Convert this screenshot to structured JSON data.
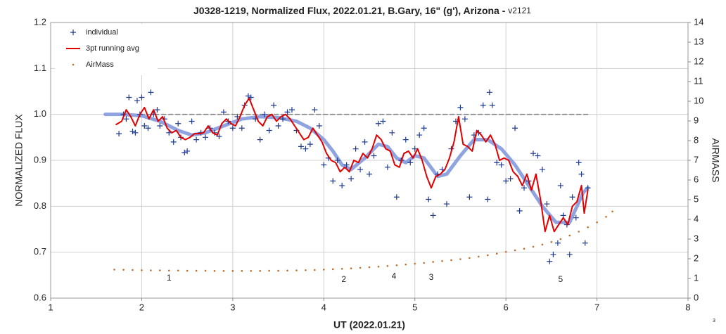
{
  "chart_data": {
    "type": "scatter",
    "title": "J0328-1219, Normalized Flux, 2022.01.21, B.Gary, 16\" (g'), Arizona - ",
    "title_version": "v2121",
    "corner_note": "3",
    "xlabel": "UT (2022.01.21)",
    "ylabel": "NORMALIZED FLUX",
    "y2label": "AIRMASS",
    "xlim": [
      1,
      8
    ],
    "xticks": [
      1,
      2,
      3,
      4,
      5,
      6,
      7,
      8
    ],
    "ylim": [
      0.6,
      1.2
    ],
    "yticks": [
      0.6,
      0.7,
      0.8,
      0.9,
      {
        "value": 1.0,
        "label": "1.0"
      },
      1.1,
      1.2
    ],
    "y2lim": [
      0,
      14
    ],
    "y2ticks": [
      0,
      1,
      2,
      3,
      4,
      5,
      6,
      7,
      8,
      9,
      10,
      11,
      12,
      13,
      14
    ],
    "grid": true,
    "legend": "upper left",
    "series": [
      {
        "type": "line",
        "color": "#808080",
        "dashed": true,
        "line_width": 1.5,
        "x": [
          1.6,
          6.9
        ],
        "values": [
          1.0,
          1.0
        ]
      },
      {
        "type": "line",
        "color": "#8fa3e0",
        "line_width": 5,
        "x": [
          1.6,
          1.8,
          2.0,
          2.2,
          2.4,
          2.55,
          2.7,
          2.9,
          3.1,
          3.3,
          3.5,
          3.7,
          3.85,
          4.0,
          4.1,
          4.2,
          4.3,
          4.45,
          4.6,
          4.7,
          4.8,
          4.9,
          5.0,
          5.1,
          5.25,
          5.35,
          5.5,
          5.65,
          5.8,
          5.95,
          6.1,
          6.25,
          6.4,
          6.55,
          6.7,
          6.85,
          6.9
        ],
        "values": [
          1.0,
          1.0,
          0.997,
          0.985,
          0.965,
          0.955,
          0.96,
          0.975,
          0.99,
          0.995,
          0.993,
          0.985,
          0.97,
          0.945,
          0.92,
          0.89,
          0.88,
          0.905,
          0.935,
          0.93,
          0.905,
          0.895,
          0.91,
          0.905,
          0.865,
          0.87,
          0.91,
          0.945,
          0.945,
          0.925,
          0.89,
          0.845,
          0.8,
          0.765,
          0.765,
          0.83,
          0.84
        ]
      },
      {
        "name": "individual",
        "type": "scatter",
        "marker": "plus",
        "color": "#1f3a8f",
        "x": [
          1.75,
          1.8,
          1.83,
          1.86,
          1.9,
          1.93,
          1.95,
          1.98,
          2.0,
          2.03,
          2.07,
          2.1,
          2.13,
          2.17,
          2.2,
          2.25,
          2.3,
          2.35,
          2.4,
          2.43,
          2.47,
          2.5,
          2.55,
          2.6,
          2.65,
          2.7,
          2.75,
          2.8,
          2.85,
          2.9,
          2.95,
          3.0,
          3.05,
          3.1,
          3.13,
          3.17,
          3.2,
          3.25,
          3.3,
          3.35,
          3.4,
          3.45,
          3.5,
          3.55,
          3.6,
          3.65,
          3.7,
          3.75,
          3.8,
          3.85,
          3.9,
          3.95,
          4.0,
          4.05,
          4.1,
          4.15,
          4.2,
          4.25,
          4.3,
          4.35,
          4.4,
          4.45,
          4.5,
          4.55,
          4.6,
          4.65,
          4.7,
          4.75,
          4.8,
          4.85,
          4.9,
          4.95,
          5.0,
          5.05,
          5.1,
          5.15,
          5.2,
          5.25,
          5.3,
          5.35,
          5.4,
          5.45,
          5.5,
          5.55,
          5.6,
          5.65,
          5.7,
          5.75,
          5.8,
          5.82,
          5.85,
          5.9,
          5.95,
          6.0,
          6.05,
          6.1,
          6.15,
          6.2,
          6.25,
          6.3,
          6.35,
          6.4,
          6.45,
          6.48,
          6.52,
          6.57,
          6.6,
          6.63,
          6.67,
          6.7,
          6.73,
          6.77,
          6.8,
          6.83,
          6.87,
          6.9
        ],
        "values": [
          0.958,
          1.0,
          0.99,
          1.037,
          0.963,
          0.96,
          1.03,
          1.0,
          1.037,
          0.975,
          0.97,
          1.048,
          1.0,
          1.01,
          0.975,
          0.99,
          0.96,
          0.94,
          0.98,
          0.95,
          0.917,
          0.92,
          0.985,
          0.945,
          0.96,
          0.95,
          0.97,
          0.96,
          0.952,
          1.005,
          0.985,
          0.97,
          0.995,
          0.97,
          1.02,
          1.04,
          1.037,
          0.99,
          0.945,
          1.0,
          0.965,
          1.02,
          0.975,
          0.99,
          1.005,
          1.01,
          0.965,
          0.93,
          0.925,
          0.935,
          1.01,
          0.975,
          0.89,
          0.905,
          0.855,
          0.9,
          0.845,
          0.89,
          0.86,
          0.925,
          0.88,
          0.94,
          0.87,
          0.91,
          0.98,
          0.985,
          0.885,
          0.96,
          0.82,
          0.9,
          0.945,
          0.895,
          0.925,
          0.955,
          0.97,
          0.815,
          0.78,
          0.87,
          0.88,
          0.805,
          0.925,
          0.985,
          1.015,
          0.99,
          0.82,
          0.955,
          0.96,
          1.02,
          0.815,
          1.048,
          1.02,
          0.895,
          0.89,
          0.855,
          0.86,
          0.97,
          0.79,
          0.84,
          0.855,
          0.915,
          0.91,
          0.88,
          0.805,
          0.68,
          0.695,
          0.72,
          0.845,
          0.78,
          0.76,
          0.695,
          0.82,
          0.775,
          0.895,
          0.87,
          0.72,
          0.84
        ]
      },
      {
        "name": "3pt running avg",
        "type": "line",
        "color": "#e00000",
        "line_width": 2,
        "x": [
          1.72,
          1.78,
          1.83,
          1.88,
          1.93,
          1.98,
          2.03,
          2.08,
          2.13,
          2.18,
          2.23,
          2.28,
          2.33,
          2.38,
          2.43,
          2.48,
          2.53,
          2.58,
          2.63,
          2.68,
          2.73,
          2.78,
          2.83,
          2.88,
          2.93,
          2.98,
          3.03,
          3.08,
          3.13,
          3.18,
          3.23,
          3.28,
          3.33,
          3.38,
          3.43,
          3.48,
          3.53,
          3.58,
          3.63,
          3.68,
          3.73,
          3.78,
          3.83,
          3.88,
          3.93,
          3.98,
          4.03,
          4.08,
          4.13,
          4.18,
          4.23,
          4.28,
          4.33,
          4.38,
          4.43,
          4.48,
          4.53,
          4.58,
          4.63,
          4.68,
          4.73,
          4.78,
          4.83,
          4.88,
          4.93,
          4.98,
          5.03,
          5.08,
          5.13,
          5.18,
          5.23,
          5.28,
          5.33,
          5.38,
          5.43,
          5.48,
          5.53,
          5.58,
          5.63,
          5.68,
          5.73,
          5.78,
          5.83,
          5.88,
          5.93,
          5.98,
          6.03,
          6.08,
          6.13,
          6.18,
          6.23,
          6.28,
          6.33,
          6.38,
          6.43,
          6.48,
          6.53,
          6.58,
          6.63,
          6.68,
          6.73,
          6.78,
          6.83,
          6.86,
          6.9
        ],
        "values": [
          0.978,
          0.985,
          1.01,
          0.995,
          0.975,
          1.0,
          1.015,
          0.99,
          1.01,
          0.985,
          0.995,
          0.97,
          0.96,
          0.965,
          0.95,
          0.945,
          0.95,
          0.958,
          0.958,
          0.96,
          0.975,
          0.96,
          0.955,
          0.98,
          0.99,
          0.98,
          0.975,
          0.995,
          1.02,
          1.035,
          1.01,
          0.985,
          0.975,
          0.995,
          1.0,
          0.985,
          0.995,
          1.0,
          0.99,
          0.975,
          0.96,
          0.945,
          0.95,
          0.97,
          0.955,
          0.94,
          0.915,
          0.9,
          0.895,
          0.875,
          0.885,
          0.875,
          0.9,
          0.895,
          0.915,
          0.905,
          0.925,
          0.955,
          0.945,
          0.925,
          0.92,
          0.89,
          0.885,
          0.915,
          0.92,
          0.905,
          0.925,
          0.9,
          0.865,
          0.84,
          0.865,
          0.87,
          0.88,
          0.905,
          0.94,
          0.995,
          0.935,
          0.93,
          0.92,
          0.965,
          0.955,
          0.94,
          0.955,
          0.935,
          0.9,
          0.905,
          0.9,
          0.875,
          0.865,
          0.845,
          0.87,
          0.835,
          0.87,
          0.815,
          0.745,
          0.78,
          0.745,
          0.76,
          0.775,
          0.76,
          0.8,
          0.81,
          0.845,
          0.785,
          0.835
        ]
      },
      {
        "name": "AirMass",
        "type": "scatter",
        "marker": "dot",
        "color": "#c07030",
        "axis": "y2",
        "x": [
          1.7,
          1.8,
          1.9,
          2.0,
          2.1,
          2.2,
          2.3,
          2.4,
          2.5,
          2.6,
          2.7,
          2.8,
          2.9,
          3.0,
          3.1,
          3.2,
          3.3,
          3.4,
          3.5,
          3.6,
          3.7,
          3.8,
          3.9,
          4.0,
          4.1,
          4.2,
          4.3,
          4.4,
          4.5,
          4.6,
          4.7,
          4.8,
          4.9,
          5.0,
          5.1,
          5.2,
          5.3,
          5.4,
          5.5,
          5.6,
          5.7,
          5.8,
          5.9,
          6.0,
          6.1,
          6.2,
          6.3,
          6.4,
          6.5,
          6.6,
          6.7,
          6.8,
          6.9,
          7.0,
          7.1,
          7.17
        ],
        "values": [
          1.45,
          1.44,
          1.43,
          1.42,
          1.41,
          1.41,
          1.4,
          1.4,
          1.39,
          1.39,
          1.39,
          1.38,
          1.38,
          1.38,
          1.38,
          1.38,
          1.38,
          1.39,
          1.39,
          1.4,
          1.41,
          1.42,
          1.43,
          1.45,
          1.47,
          1.49,
          1.51,
          1.54,
          1.57,
          1.6,
          1.63,
          1.67,
          1.71,
          1.75,
          1.79,
          1.84,
          1.88,
          1.93,
          1.98,
          2.04,
          2.11,
          2.18,
          2.26,
          2.35,
          2.43,
          2.51,
          2.61,
          2.72,
          2.85,
          3.0,
          3.18,
          3.38,
          3.6,
          3.85,
          4.13,
          4.4
        ]
      }
    ],
    "annotations": [
      {
        "text": "1",
        "x": 2.3,
        "y": 0.643
      },
      {
        "text": "2",
        "x": 4.22,
        "y": 0.64
      },
      {
        "text": "4",
        "x": 4.77,
        "y": 0.647
      },
      {
        "text": "3",
        "x": 5.18,
        "y": 0.645
      },
      {
        "text": "5",
        "x": 6.6,
        "y": 0.64
      }
    ]
  }
}
